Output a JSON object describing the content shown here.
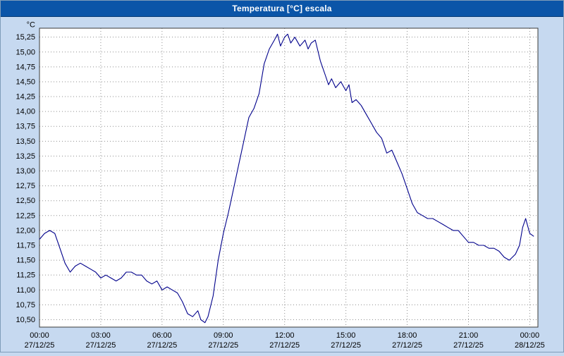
{
  "window": {
    "title": "Temperatura [°C] escala"
  },
  "colors": {
    "background": "#c6d9f0",
    "titlebar": "#0b55a8",
    "title_text": "#ffffff",
    "plot_background": "#ffffff",
    "grid": "#8f8f8f",
    "plot_border": "#3a3a3a",
    "line": "#00008b",
    "label_text": "#000000"
  },
  "chart_data": {
    "type": "line",
    "title": "Temperatura [°C] escala",
    "ylabel": "°C",
    "y_unit_label": "°C",
    "ylim": [
      10.375,
      15.4
    ],
    "xlim_hours": [
      0,
      24.4
    ],
    "grid": "dashed",
    "legend": "none",
    "y_ticks": [
      {
        "value": 15.25,
        "label": "15,25"
      },
      {
        "value": 15.0,
        "label": "15,00"
      },
      {
        "value": 14.75,
        "label": "14,75"
      },
      {
        "value": 14.5,
        "label": "14,50"
      },
      {
        "value": 14.25,
        "label": "14,25"
      },
      {
        "value": 14.0,
        "label": "14,00"
      },
      {
        "value": 13.75,
        "label": "13,75"
      },
      {
        "value": 13.5,
        "label": "13,50"
      },
      {
        "value": 13.25,
        "label": "13,25"
      },
      {
        "value": 13.0,
        "label": "13,00"
      },
      {
        "value": 12.75,
        "label": "12,75"
      },
      {
        "value": 12.5,
        "label": "12,50"
      },
      {
        "value": 12.25,
        "label": "12,25"
      },
      {
        "value": 12.0,
        "label": "12,00"
      },
      {
        "value": 11.75,
        "label": "11,75"
      },
      {
        "value": 11.5,
        "label": "11,50"
      },
      {
        "value": 11.25,
        "label": "11,25"
      },
      {
        "value": 11.0,
        "label": "11,00"
      },
      {
        "value": 10.75,
        "label": "10,75"
      },
      {
        "value": 10.5,
        "label": "10,50"
      }
    ],
    "x_ticks": [
      {
        "hour": 0,
        "time": "00:00",
        "date": "27/12/25"
      },
      {
        "hour": 3,
        "time": "03:00",
        "date": "27/12/25"
      },
      {
        "hour": 6,
        "time": "06:00",
        "date": "27/12/25"
      },
      {
        "hour": 9,
        "time": "09:00",
        "date": "27/12/25"
      },
      {
        "hour": 12,
        "time": "12:00",
        "date": "27/12/25"
      },
      {
        "hour": 15,
        "time": "15:00",
        "date": "27/12/25"
      },
      {
        "hour": 18,
        "time": "18:00",
        "date": "27/12/25"
      },
      {
        "hour": 21,
        "time": "21:00",
        "date": "27/12/25"
      },
      {
        "hour": 24,
        "time": "00:00",
        "date": "28/12/25"
      }
    ],
    "series": [
      {
        "name": "Temperatura",
        "points": [
          [
            0,
            11.85
          ],
          [
            0.25,
            11.95
          ],
          [
            0.5,
            12.0
          ],
          [
            0.75,
            11.95
          ],
          [
            1,
            11.7
          ],
          [
            1.25,
            11.45
          ],
          [
            1.5,
            11.3
          ],
          [
            1.75,
            11.4
          ],
          [
            2,
            11.45
          ],
          [
            2.25,
            11.4
          ],
          [
            2.5,
            11.35
          ],
          [
            2.75,
            11.3
          ],
          [
            3,
            11.2
          ],
          [
            3.25,
            11.25
          ],
          [
            3.5,
            11.2
          ],
          [
            3.75,
            11.15
          ],
          [
            4,
            11.2
          ],
          [
            4.25,
            11.3
          ],
          [
            4.5,
            11.3
          ],
          [
            4.75,
            11.25
          ],
          [
            5,
            11.25
          ],
          [
            5.25,
            11.15
          ],
          [
            5.5,
            11.1
          ],
          [
            5.75,
            11.15
          ],
          [
            6,
            11.0
          ],
          [
            6.25,
            11.05
          ],
          [
            6.5,
            11.0
          ],
          [
            6.75,
            10.95
          ],
          [
            7,
            10.8
          ],
          [
            7.25,
            10.6
          ],
          [
            7.5,
            10.55
          ],
          [
            7.75,
            10.65
          ],
          [
            7.9,
            10.5
          ],
          [
            8.1,
            10.45
          ],
          [
            8.25,
            10.55
          ],
          [
            8.5,
            10.9
          ],
          [
            8.75,
            11.5
          ],
          [
            9,
            11.95
          ],
          [
            9.25,
            12.3
          ],
          [
            9.5,
            12.7
          ],
          [
            9.75,
            13.1
          ],
          [
            10,
            13.5
          ],
          [
            10.25,
            13.9
          ],
          [
            10.5,
            14.05
          ],
          [
            10.75,
            14.3
          ],
          [
            11,
            14.8
          ],
          [
            11.25,
            15.05
          ],
          [
            11.5,
            15.2
          ],
          [
            11.65,
            15.3
          ],
          [
            11.8,
            15.1
          ],
          [
            12,
            15.25
          ],
          [
            12.15,
            15.3
          ],
          [
            12.3,
            15.15
          ],
          [
            12.5,
            15.25
          ],
          [
            12.75,
            15.1
          ],
          [
            13,
            15.2
          ],
          [
            13.15,
            15.05
          ],
          [
            13.3,
            15.15
          ],
          [
            13.5,
            15.2
          ],
          [
            13.75,
            14.85
          ],
          [
            14,
            14.6
          ],
          [
            14.15,
            14.45
          ],
          [
            14.3,
            14.55
          ],
          [
            14.5,
            14.4
          ],
          [
            14.75,
            14.5
          ],
          [
            15,
            14.35
          ],
          [
            15.15,
            14.45
          ],
          [
            15.3,
            14.15
          ],
          [
            15.5,
            14.2
          ],
          [
            15.75,
            14.1
          ],
          [
            16,
            13.95
          ],
          [
            16.25,
            13.8
          ],
          [
            16.5,
            13.65
          ],
          [
            16.75,
            13.55
          ],
          [
            17,
            13.3
          ],
          [
            17.25,
            13.35
          ],
          [
            17.5,
            13.15
          ],
          [
            17.75,
            12.95
          ],
          [
            18,
            12.7
          ],
          [
            18.25,
            12.45
          ],
          [
            18.5,
            12.3
          ],
          [
            18.75,
            12.25
          ],
          [
            19,
            12.2
          ],
          [
            19.25,
            12.2
          ],
          [
            19.5,
            12.15
          ],
          [
            19.75,
            12.1
          ],
          [
            20,
            12.05
          ],
          [
            20.25,
            12.0
          ],
          [
            20.5,
            12.0
          ],
          [
            20.75,
            11.9
          ],
          [
            21,
            11.8
          ],
          [
            21.25,
            11.8
          ],
          [
            21.5,
            11.75
          ],
          [
            21.75,
            11.75
          ],
          [
            22,
            11.7
          ],
          [
            22.25,
            11.7
          ],
          [
            22.5,
            11.65
          ],
          [
            22.75,
            11.55
          ],
          [
            23,
            11.5
          ],
          [
            23.15,
            11.55
          ],
          [
            23.3,
            11.6
          ],
          [
            23.5,
            11.75
          ],
          [
            23.65,
            12.05
          ],
          [
            23.8,
            12.2
          ],
          [
            24,
            11.95
          ],
          [
            24.2,
            11.9
          ]
        ]
      }
    ]
  }
}
